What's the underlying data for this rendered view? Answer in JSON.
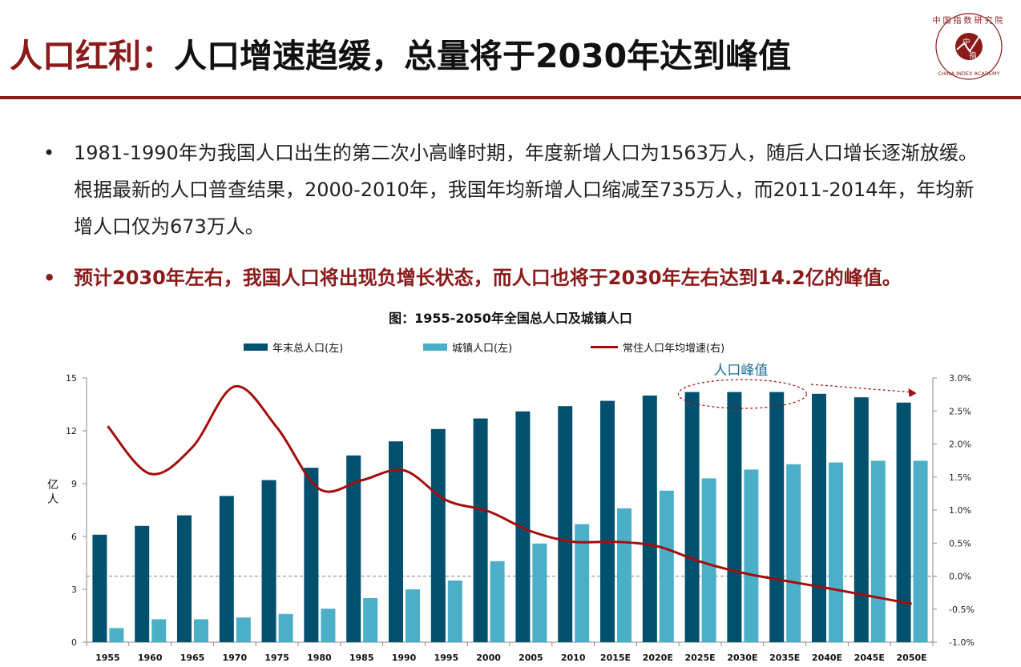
{
  "header": {
    "title_red": "人口红利：",
    "title_black": "人口增速趋缓，总量将于2030年达到峰值"
  },
  "logo": {
    "arc_text": "中国指数研究院",
    "center_char_top": "中",
    "center_char_bottom": "指",
    "english": "CHINA INDEX ACADEMY"
  },
  "bullets": [
    {
      "marker": "•",
      "text": "1981-1990年为我国人口出生的第二次小高峰时期，年度新增人口为1563万人，随后人口增长逐渐放缓。根据最新的人口普查结果，2000-2010年，我国年均新增人口缩减至735万人，而2011-2014年，年均新增人口仅为673万人。"
    },
    {
      "marker": "•",
      "text": "预计2030年左右，我国人口将出现负增长状态，而人口也将于2030年左右达到14.2亿的峰值。"
    }
  ],
  "colors": {
    "dark_bar": "#00506e",
    "light_bar": "#4bafc8",
    "line": "#a50d0d",
    "accent": "#8b1a1a"
  },
  "chart_data": {
    "type": "bar",
    "title": "图：1955-2050年全国总人口及城镇人口",
    "categories": [
      "1955",
      "1960",
      "1965",
      "1970",
      "1975",
      "1980",
      "1985",
      "1990",
      "1995",
      "2000",
      "2005",
      "2010",
      "2015E",
      "2020E",
      "2025E",
      "2030E",
      "2035E",
      "2040E",
      "2045E",
      "2050E"
    ],
    "series": [
      {
        "name": "年末总人口(左)",
        "kind": "bar",
        "axis": "left",
        "values": [
          6.1,
          6.6,
          7.2,
          8.3,
          9.2,
          9.9,
          10.6,
          11.4,
          12.1,
          12.7,
          13.1,
          13.4,
          13.7,
          14.0,
          14.2,
          14.2,
          14.2,
          14.1,
          13.9,
          13.6
        ]
      },
      {
        "name": "城镇人口(左)",
        "kind": "bar",
        "axis": "left",
        "values": [
          0.8,
          1.3,
          1.3,
          1.4,
          1.6,
          1.9,
          2.5,
          3.0,
          3.5,
          4.6,
          5.6,
          6.7,
          7.6,
          8.6,
          9.3,
          9.8,
          10.1,
          10.2,
          10.3,
          10.3
        ]
      },
      {
        "name": "常住人口年均增速(右)",
        "kind": "line",
        "axis": "right",
        "values": [
          2.27,
          1.55,
          1.95,
          2.87,
          2.25,
          1.32,
          1.45,
          1.6,
          1.15,
          0.98,
          0.68,
          0.52,
          0.52,
          0.45,
          0.22,
          0.05,
          -0.07,
          -0.18,
          -0.3,
          -0.42
        ]
      }
    ],
    "ylabel": "亿人",
    "ylim": [
      0,
      15
    ],
    "yticks": [
      "0",
      "3",
      "6",
      "9",
      "12",
      "15"
    ],
    "y2lim": [
      -1.0,
      3.0
    ],
    "y2ticks": [
      "-1.0%",
      "-0.5%",
      "0.0%",
      "0.5%",
      "1.0%",
      "1.5%",
      "2.0%",
      "2.5%",
      "3.0%"
    ],
    "annotation": "人口峰值",
    "legend_position": "top"
  }
}
